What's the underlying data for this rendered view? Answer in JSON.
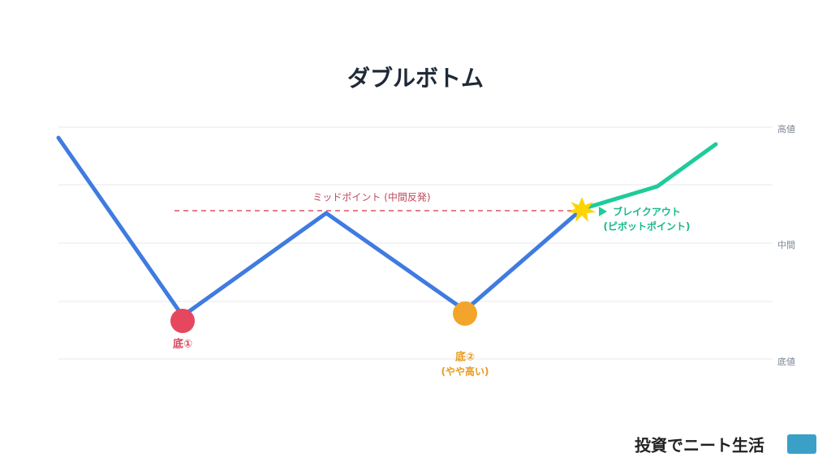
{
  "title": "ダブルボトム",
  "axis_labels": {
    "high": "高値",
    "mid": "中間",
    "low": "底値"
  },
  "annotations": {
    "midpoint": "ミッドポイント (中間反発)",
    "bottom1": "底①",
    "bottom2": "底②",
    "bottom2_note": "(やや高い)",
    "breakout": "ブレイクアウト",
    "breakout_note": "(ピボットポイント)"
  },
  "logo": "投資でニート生活"
}
